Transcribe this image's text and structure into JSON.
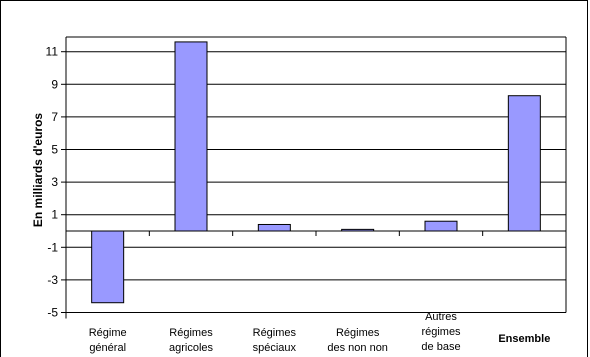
{
  "chart_data": {
    "type": "bar",
    "ylabel": "En milliards d'euros",
    "ylim": [
      -5,
      12
    ],
    "yticks": [
      11,
      9,
      7,
      5,
      3,
      1,
      -1,
      -3,
      -5
    ],
    "grid": true,
    "categories": [
      [
        "Régime",
        "général"
      ],
      [
        "Régimes",
        "agricoles"
      ],
      [
        "Régimes",
        "spéciaux"
      ],
      [
        "Régimes",
        "des non non"
      ],
      [
        "Autres",
        "régimes",
        "de base"
      ],
      [
        "Ensemble"
      ]
    ],
    "bold_categories": [
      5
    ],
    "values": [
      -4.4,
      11.6,
      0.4,
      0.1,
      0.6,
      8.3
    ],
    "bar_color": "#9999ff"
  }
}
